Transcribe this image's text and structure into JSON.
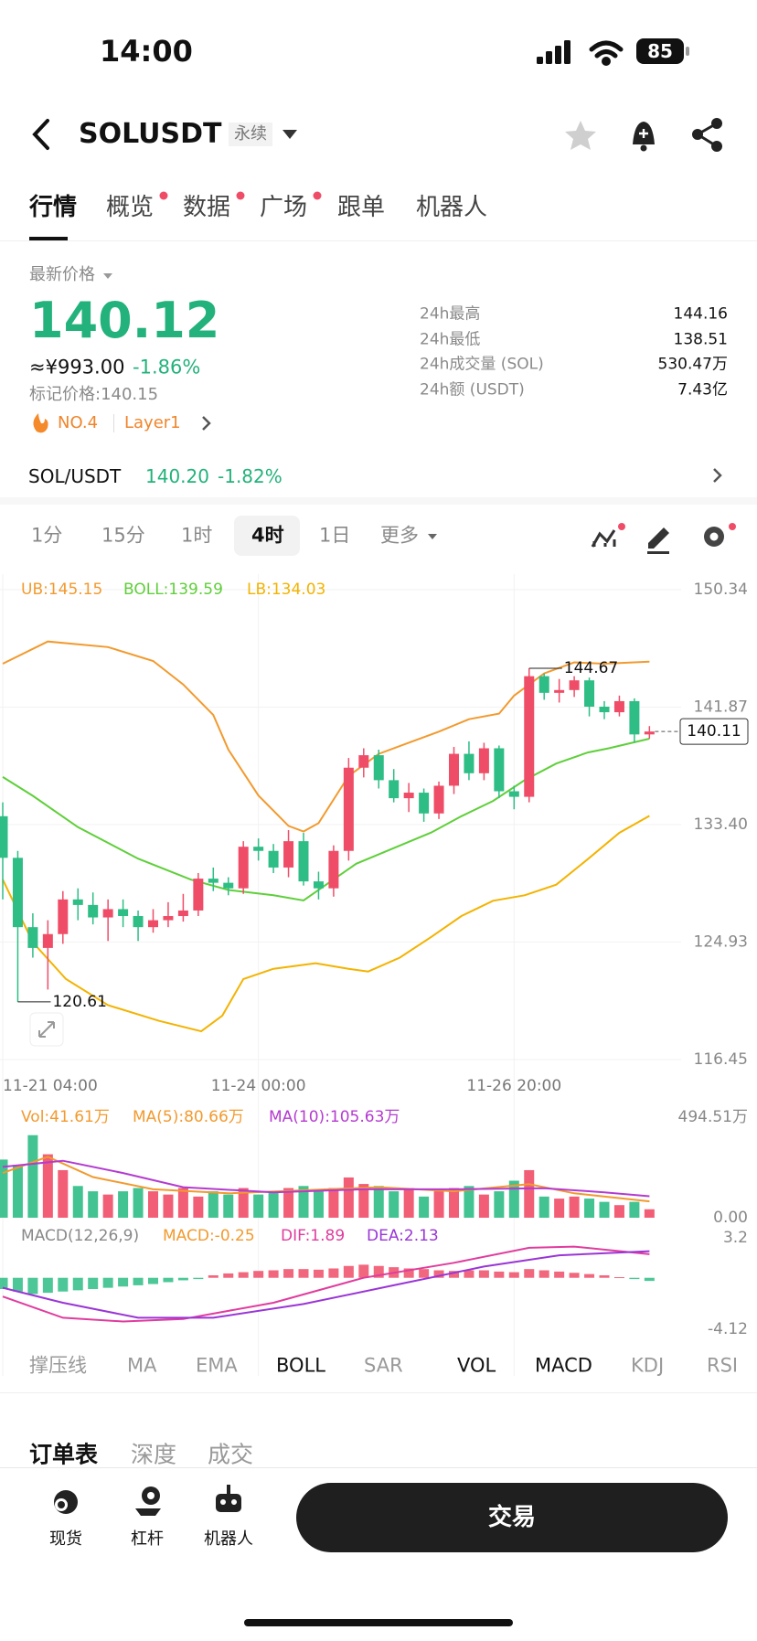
{
  "status": {
    "time": "14:00",
    "battery": "85"
  },
  "header": {
    "symbol": "SOLUSDT",
    "tag": "永续"
  },
  "tabs": [
    "行情",
    "概览",
    "数据",
    "广场",
    "跟单",
    "机器人"
  ],
  "tabs_badged": [
    1,
    2,
    3
  ],
  "price": {
    "label": "最新价格",
    "last": "140.12",
    "cny": "≈¥993.00",
    "change": "-1.86%",
    "mark": "标记价格:140.15",
    "rank": "NO.4",
    "sector": "Layer1"
  },
  "stats": [
    {
      "label": "24h最高",
      "value": "144.16"
    },
    {
      "label": "24h最低",
      "value": "138.51"
    },
    {
      "label": "24h成交量 (SOL)",
      "value": "530.47万"
    },
    {
      "label": "24h额 (USDT)",
      "value": "7.43亿"
    }
  ],
  "pair": {
    "name": "SOL/USDT",
    "price": "140.20",
    "change": "-1.82%"
  },
  "timeframes": [
    "1分",
    "15分",
    "1时",
    "4时",
    "1日",
    "更多"
  ],
  "timeframe_selected": 3,
  "indicators": [
    "撑压线",
    "MA",
    "EMA",
    "BOLL",
    "SAR",
    "VOL",
    "MACD",
    "KDJ",
    "RSI"
  ],
  "indicators_active": [
    3,
    5,
    6
  ],
  "orderbook_tabs": [
    "订单表",
    "深度",
    "成交"
  ],
  "nav": [
    "现货",
    "杠杆",
    "机器人"
  ],
  "trade": "交易",
  "chart_data": [
    {
      "type": "candlestick",
      "up_color": "#ef4d67",
      "down_color": "#2ebd85",
      "open": [
        134,
        131,
        126,
        124.5,
        125.5,
        128,
        127.6,
        126.7,
        127.3,
        126.8,
        126,
        126.5,
        126.8,
        127.2,
        129.5,
        129.2,
        128.8,
        131.8,
        131.5,
        130.3,
        132.2,
        129.3,
        128.8,
        131.5,
        137.5,
        138.4,
        136.6,
        135.3,
        135.7,
        134.2,
        136.2,
        138.5,
        137.1,
        138.9,
        135.8,
        135.4,
        144.1,
        142.9,
        143.1,
        143.8,
        141.9,
        141.5,
        142.3,
        139.9
      ],
      "high": [
        135,
        131.5,
        127,
        126.5,
        128.6,
        128.8,
        128.5,
        128,
        128,
        127.2,
        127.3,
        127.8,
        128.4,
        129.9,
        130.3,
        129.6,
        132.2,
        132.4,
        132,
        133,
        132.8,
        130,
        131.9,
        138.2,
        138.9,
        138.8,
        137.4,
        136.4,
        136,
        136.5,
        139,
        139.4,
        139.3,
        139.1,
        136.2,
        144.67,
        144.3,
        143.9,
        144.1,
        144,
        142.3,
        142.7,
        142.5,
        140.5
      ],
      "low": [
        128,
        120.61,
        123.8,
        121.5,
        124.8,
        126.5,
        126.2,
        125,
        126,
        125,
        125.6,
        126,
        126.4,
        126.8,
        128.6,
        128.3,
        128.4,
        130.8,
        129.9,
        129.6,
        129,
        128,
        128.2,
        130.8,
        136.8,
        136,
        135,
        134.3,
        133.6,
        133.8,
        135.6,
        136.6,
        136.6,
        135.3,
        134.5,
        135,
        142.4,
        142.2,
        142.6,
        141.2,
        141,
        141.2,
        139.3,
        139.6
      ],
      "close": [
        131,
        126,
        124.5,
        125.5,
        128,
        127.6,
        126.7,
        127.3,
        126.8,
        126,
        126.5,
        126.8,
        127.2,
        129.5,
        129.2,
        128.8,
        131.8,
        131.5,
        130.3,
        132.2,
        129.3,
        128.8,
        131.5,
        137.5,
        138.4,
        136.6,
        135.3,
        135.7,
        134.2,
        136.2,
        138.5,
        137.1,
        138.9,
        135.8,
        135.4,
        144.1,
        142.9,
        143.1,
        143.8,
        141.9,
        141.5,
        142.3,
        139.9,
        140.11
      ],
      "series": [
        {
          "name": "UB:145.15",
          "color": "#f29a2e",
          "x": [
            0,
            3,
            7,
            10,
            12,
            14,
            15,
            17,
            19,
            20,
            21,
            23,
            25,
            27,
            29,
            31,
            33,
            34,
            36,
            38,
            40,
            43
          ],
          "values": [
            145,
            146.6,
            146.2,
            145.2,
            143.5,
            141.3,
            138.8,
            135.5,
            133.3,
            132.9,
            133.5,
            136.9,
            138.5,
            139.3,
            140.1,
            141,
            141.4,
            142.7,
            144.3,
            145.1,
            145,
            145.15
          ]
        },
        {
          "name": "BOLL:139.59",
          "color": "#5fcf3a",
          "x": [
            0,
            2,
            5,
            9,
            12.5,
            15,
            18,
            20,
            21.5,
            23.5,
            26,
            28.5,
            30.5,
            32.6,
            34.7,
            36.8,
            38.9,
            40.3,
            43
          ],
          "values": [
            136.83,
            135.47,
            133.21,
            130.94,
            129.43,
            128.68,
            128.3,
            127.92,
            129.06,
            130.57,
            131.7,
            132.83,
            134,
            135.1,
            136.6,
            137.8,
            138.6,
            138.9,
            139.59
          ]
        },
        {
          "name": "LB:134.03",
          "color": "#f3b300",
          "x": [
            0,
            2,
            4.2,
            7,
            10.4,
            13.2,
            14.6,
            16,
            18,
            20.8,
            23,
            24.3,
            26.4,
            28.5,
            30.5,
            32.6,
            34.7,
            36.8,
            38.9,
            41,
            43
          ],
          "values": [
            129.43,
            124.9,
            122.26,
            120.37,
            119.24,
            118.49,
            119.62,
            122.26,
            123,
            123.4,
            123,
            122.8,
            123.8,
            125.3,
            126.8,
            127.9,
            128.3,
            129.06,
            130.9,
            132.8,
            134.03
          ]
        }
      ],
      "ylim": [
        116.45,
        150.34
      ],
      "yticks": [
        150.34,
        141.87,
        {
          "value": 133.4,
          "label": "133.40"
        },
        124.93,
        116.45
      ],
      "xticks": [
        {
          "value": 0,
          "label": "11-21 04:00"
        },
        {
          "value": 17,
          "label": "11-24 00:00"
        },
        {
          "value": 34,
          "label": "11-26 20:00"
        }
      ],
      "grid": true
    },
    {
      "type": "bar",
      "series": [
        {
          "name": "Vol:41.61万",
          "values": [
            286,
            260,
            406,
            312,
            234,
            156,
            130,
            114,
            130,
            146,
            130,
            114,
            146,
            104,
            130,
            114,
            146,
            114,
            130,
            146,
            156,
            130,
            146,
            198,
            166,
            156,
            130,
            146,
            104,
            130,
            146,
            156,
            114,
            130,
            182,
            234,
            104,
            94,
            104,
            94,
            78,
            62,
            78,
            41.61
          ]
        },
        {
          "name": "MA(5):80.66万",
          "color": "#f29a2e",
          "x": [
            0,
            3,
            6,
            10,
            15,
            20,
            25,
            30,
            35,
            38,
            43
          ],
          "values": [
            220,
            300,
            200,
            140,
            120,
            135,
            150,
            130,
            165,
            120,
            80.66
          ]
        },
        {
          "name": "MA(10):105.63万",
          "color": "#b43bd0",
          "x": [
            0,
            4,
            8,
            12,
            18,
            24,
            30,
            36,
            40,
            43
          ],
          "values": [
            250,
            280,
            220,
            150,
            125,
            140,
            140,
            145,
            125,
            105.63
          ]
        }
      ],
      "ylim": [
        0,
        494.51
      ],
      "yticks": [
        {
          "value": 494.51,
          "label": "494.51万"
        },
        {
          "value": 0,
          "label": "0.00"
        }
      ]
    },
    {
      "type": "bar",
      "title": "MACD(12,26,9)",
      "series": [
        {
          "name": "MACD:-0.25",
          "color": "#f29a2e",
          "values": [
            -0.9,
            -1.1,
            -1.3,
            -1.2,
            -1.1,
            -1.0,
            -0.9,
            -0.8,
            -0.7,
            -0.6,
            -0.5,
            -0.35,
            -0.2,
            -0.1,
            0.2,
            0.35,
            0.45,
            0.55,
            0.6,
            0.7,
            0.7,
            0.65,
            0.75,
            0.95,
            1.05,
            0.95,
            0.85,
            0.75,
            0.7,
            0.6,
            0.55,
            0.6,
            0.6,
            0.5,
            0.45,
            0.7,
            0.6,
            0.5,
            0.4,
            0.3,
            0.2,
            0.05,
            -0.1,
            -0.25
          ]
        },
        {
          "name": "DIF:1.89",
          "color": "#e03c9e",
          "x": [
            0,
            4,
            8,
            12,
            18,
            24,
            30,
            35,
            38,
            43
          ],
          "values": [
            -1.5,
            -3.2,
            -3.5,
            -3.3,
            -2,
            0,
            1.2,
            2.4,
            2.5,
            1.89
          ]
        },
        {
          "name": "DEA:2.13",
          "color": "#9a35d6",
          "x": [
            0,
            4,
            9,
            14,
            20,
            26,
            32,
            37,
            43
          ],
          "values": [
            -0.8,
            -2,
            -3.2,
            -3.2,
            -2.1,
            -0.6,
            0.9,
            1.8,
            2.13
          ]
        }
      ],
      "ylim": [
        -4.12,
        3.2
      ],
      "yticks": [
        3.2,
        -4.12
      ]
    }
  ]
}
